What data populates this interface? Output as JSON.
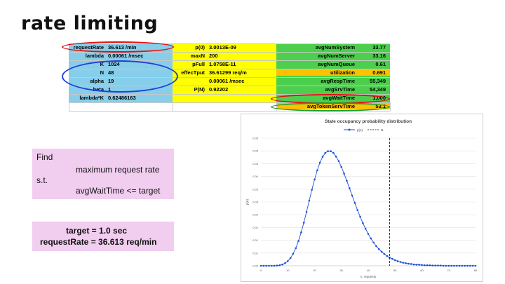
{
  "slide": {
    "title": "rate limiting"
  },
  "sheet": {
    "col1": [
      {
        "label": "requestRate",
        "value": "36.613 /min"
      },
      {
        "label": "lambda",
        "value": "0.00061 /msec"
      },
      {
        "label": "K",
        "value": "1024"
      },
      {
        "label": "N",
        "value": "48"
      },
      {
        "label": "alpha",
        "value": "19"
      },
      {
        "label": "beta",
        "value": "1"
      },
      {
        "label": "lambda*K",
        "value": "0.62486163"
      }
    ],
    "col2": [
      {
        "label": "p(0)",
        "value": "3.0013E-09"
      },
      {
        "label": "maxN",
        "value": "200"
      },
      {
        "label": "pFull",
        "value": "1.0758E-11"
      },
      {
        "label": "effecTput",
        "value": "36.61299 req/m"
      },
      {
        "label": "",
        "value": "0.00061 /msec"
      },
      {
        "label": "P(N)",
        "value": "0.92202"
      }
    ],
    "col3": [
      {
        "label": "avgNumSystem",
        "value": "33.77"
      },
      {
        "label": "avgNumServer",
        "value": "33.16"
      },
      {
        "label": "avgNumQueue",
        "value": "0.61"
      },
      {
        "label": "utilization",
        "value": "0.691"
      },
      {
        "label": "avgRespTime",
        "value": "55,349"
      },
      {
        "label": "avgSrvTime",
        "value": "54,349"
      },
      {
        "label": "avgWaitTime",
        "value": "1,000"
      },
      {
        "label": "avgTokenServTime",
        "value": "53.1"
      }
    ],
    "highlight_color": "#ffc000",
    "annotation_colors": {
      "red": "#e01010",
      "blue": "#1f3fd8",
      "green": "#1a9f3a"
    }
  },
  "find": {
    "line1": "Find",
    "line2": "maximum request rate",
    "line3": "s.t.",
    "line4": "avgWaitTime <= target"
  },
  "target": {
    "line1": "target = 1.0 sec",
    "line2": "requestRate = 36.613 req/min"
  },
  "chart_data": {
    "type": "line",
    "title": "State occupancy probability distribution",
    "legend": [
      {
        "name": "p(n)",
        "style": "line-marker",
        "color": "#1f4fd8"
      },
      {
        "name": "N",
        "style": "dashed",
        "color": "#000000"
      }
    ],
    "legend_position": "top-center",
    "xlabel": "n, requests",
    "ylabel": "p(n)",
    "xlim": [
      0,
      80
    ],
    "ylim": [
      0,
      0.05
    ],
    "xticks": [
      0,
      10,
      20,
      30,
      40,
      50,
      60,
      70,
      80
    ],
    "yticks": [
      0,
      0.005,
      0.01,
      0.015,
      0.02,
      0.025,
      0.03,
      0.035,
      0.04,
      0.045,
      0.05
    ],
    "ytick_labels": [
      "0.00",
      "0.01",
      "0.01",
      "0.02",
      "0.02",
      "0.03",
      "0.03",
      "0.04",
      "0.04",
      "0.05",
      "0.05"
    ],
    "grid": "horizontal",
    "vline_x": 48,
    "series": [
      {
        "name": "p(n)",
        "x": [
          0,
          1,
          2,
          3,
          4,
          5,
          6,
          7,
          8,
          9,
          10,
          11,
          12,
          13,
          14,
          15,
          16,
          17,
          18,
          19,
          20,
          21,
          22,
          23,
          24,
          25,
          26,
          27,
          28,
          29,
          30,
          31,
          32,
          33,
          34,
          35,
          36,
          37,
          38,
          39,
          40,
          41,
          42,
          43,
          44,
          45,
          46,
          47,
          48,
          49,
          50,
          51,
          52,
          53,
          54,
          55,
          56,
          57,
          58,
          59,
          60,
          61,
          62,
          63,
          64,
          65,
          66,
          67,
          68,
          69,
          70,
          71,
          72,
          73,
          74,
          75,
          76,
          77,
          78,
          79,
          80
        ],
        "values": [
          0,
          0,
          0,
          0,
          0,
          0,
          0.0001,
          0.0002,
          0.0005,
          0.001,
          0.0018,
          0.003,
          0.0047,
          0.0069,
          0.0097,
          0.0131,
          0.0169,
          0.0211,
          0.0255,
          0.0298,
          0.0338,
          0.0374,
          0.0404,
          0.0427,
          0.0442,
          0.0449,
          0.0449,
          0.0442,
          0.0428,
          0.041,
          0.0387,
          0.0361,
          0.0333,
          0.0304,
          0.0275,
          0.0246,
          0.0218,
          0.0192,
          0.0167,
          0.0145,
          0.0125,
          0.0107,
          0.0091,
          0.0077,
          0.0065,
          0.0055,
          0.0046,
          0.0038,
          0.0032,
          0.0027,
          0.0022,
          0.0018,
          0.0015,
          0.0012,
          0.001,
          0.0008,
          0.0007,
          0.0005,
          0.0004,
          0.0004,
          0.0003,
          0.0002,
          0.0002,
          0.0002,
          0.0001,
          0.0001,
          0.0001,
          0.0001,
          0,
          0,
          0,
          0,
          0,
          0,
          0,
          0,
          0,
          0,
          0,
          0,
          0
        ]
      }
    ]
  }
}
